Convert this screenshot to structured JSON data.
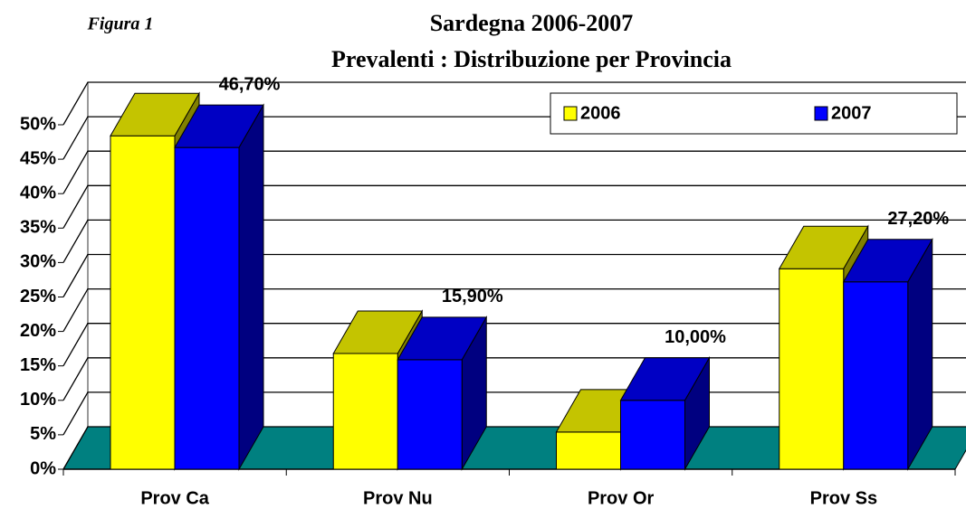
{
  "chart_data": {
    "type": "bar3d",
    "annotation": "Figura 1",
    "title": "Sardegna 2006-2007",
    "subtitle": "Prevalenti : Distribuzione per Provincia",
    "categories": [
      "Prov Ca",
      "Prov Nu",
      "Prov Or",
      "Prov Ss"
    ],
    "series": [
      {
        "name": "2006",
        "color": "#ffff00",
        "values": [
          48.4,
          16.8,
          5.4,
          29.1
        ]
      },
      {
        "name": "2007",
        "color": "#0000ff",
        "values": [
          46.7,
          15.9,
          10,
          27.2
        ],
        "value_labels": [
          "46,70%",
          "15,90%",
          "10,00%",
          "27,20%"
        ]
      }
    ],
    "ylim": [
      0,
      50
    ],
    "yticks": [
      {
        "value": 0,
        "label": "0%"
      },
      {
        "value": 5,
        "label": "5%"
      },
      {
        "value": 10,
        "label": "10%"
      },
      {
        "value": 15,
        "label": "15%"
      },
      {
        "value": 20,
        "label": "20%"
      },
      {
        "value": 25,
        "label": "25%"
      },
      {
        "value": 30,
        "label": "30%"
      },
      {
        "value": 35,
        "label": "35%"
      },
      {
        "value": 40,
        "label": "40%"
      },
      {
        "value": 45,
        "label": "45%"
      },
      {
        "value": 50,
        "label": "50%"
      }
    ],
    "grid": true,
    "floor_color": "#008080",
    "legend": "top-right"
  }
}
